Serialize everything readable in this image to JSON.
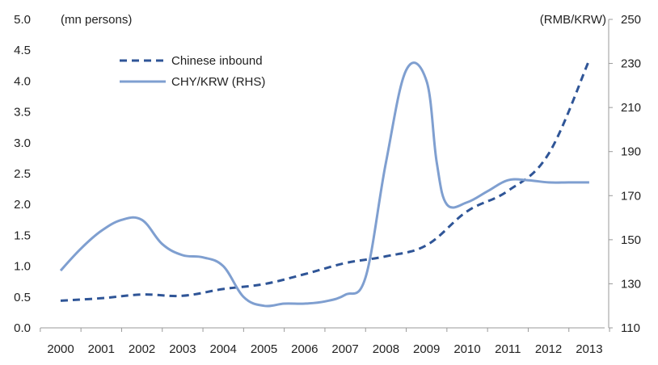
{
  "chart_data": {
    "type": "line",
    "categories": [
      "2000",
      "2001",
      "2002",
      "2003",
      "2004",
      "2005",
      "2006",
      "2007",
      "2008",
      "2009",
      "2010",
      "2011",
      "2012",
      "2013"
    ],
    "y_left": {
      "unit_label": "(mn persons)",
      "ylim": [
        0,
        5
      ],
      "ticks": [
        "0.0",
        "0.5",
        "1.0",
        "1.5",
        "2.0",
        "2.5",
        "3.0",
        "3.5",
        "4.0",
        "4.5",
        "5.0"
      ]
    },
    "y_right": {
      "unit_label": "(RMB/KRW)",
      "ylim": [
        110,
        250
      ],
      "ticks": [
        "110",
        "130",
        "150",
        "170",
        "190",
        "210",
        "230",
        "250"
      ]
    },
    "series": [
      {
        "name": "Chinese inbound",
        "axis": "left",
        "style": "dashed",
        "color": "#2f5597",
        "x": [
          2000,
          2001,
          2002,
          2003,
          2004,
          2005,
          2006,
          2007,
          2008,
          2009,
          2010,
          2011,
          2012,
          2013
        ],
        "values": [
          0.44,
          0.48,
          0.54,
          0.52,
          0.63,
          0.71,
          0.87,
          1.05,
          1.16,
          1.34,
          1.89,
          2.22,
          2.82,
          4.34
        ]
      },
      {
        "name": "CHY/KRW (RHS)",
        "axis": "right",
        "style": "solid",
        "color": "#7f9fd0",
        "x": [
          2000,
          2000.5,
          2001,
          2001.5,
          2002,
          2002.5,
          2003,
          2003.5,
          2004,
          2004.5,
          2005,
          2005.5,
          2006,
          2006.5,
          2007,
          2007.5,
          2008,
          2008.5,
          2009,
          2009.25,
          2009.5,
          2010,
          2010.5,
          2011,
          2011.5,
          2012,
          2012.5,
          2013
        ],
        "values": [
          136,
          146,
          154,
          159,
          159,
          148,
          143,
          142,
          138,
          124,
          120,
          121,
          121,
          122,
          125,
          133,
          185,
          227,
          222,
          185,
          166,
          167,
          172,
          177,
          177,
          176,
          176,
          176
        ]
      }
    ],
    "legend": {
      "placement": "top-left",
      "entries": [
        "Chinese inbound",
        "CHY/KRW (RHS)"
      ]
    },
    "grid": false
  }
}
